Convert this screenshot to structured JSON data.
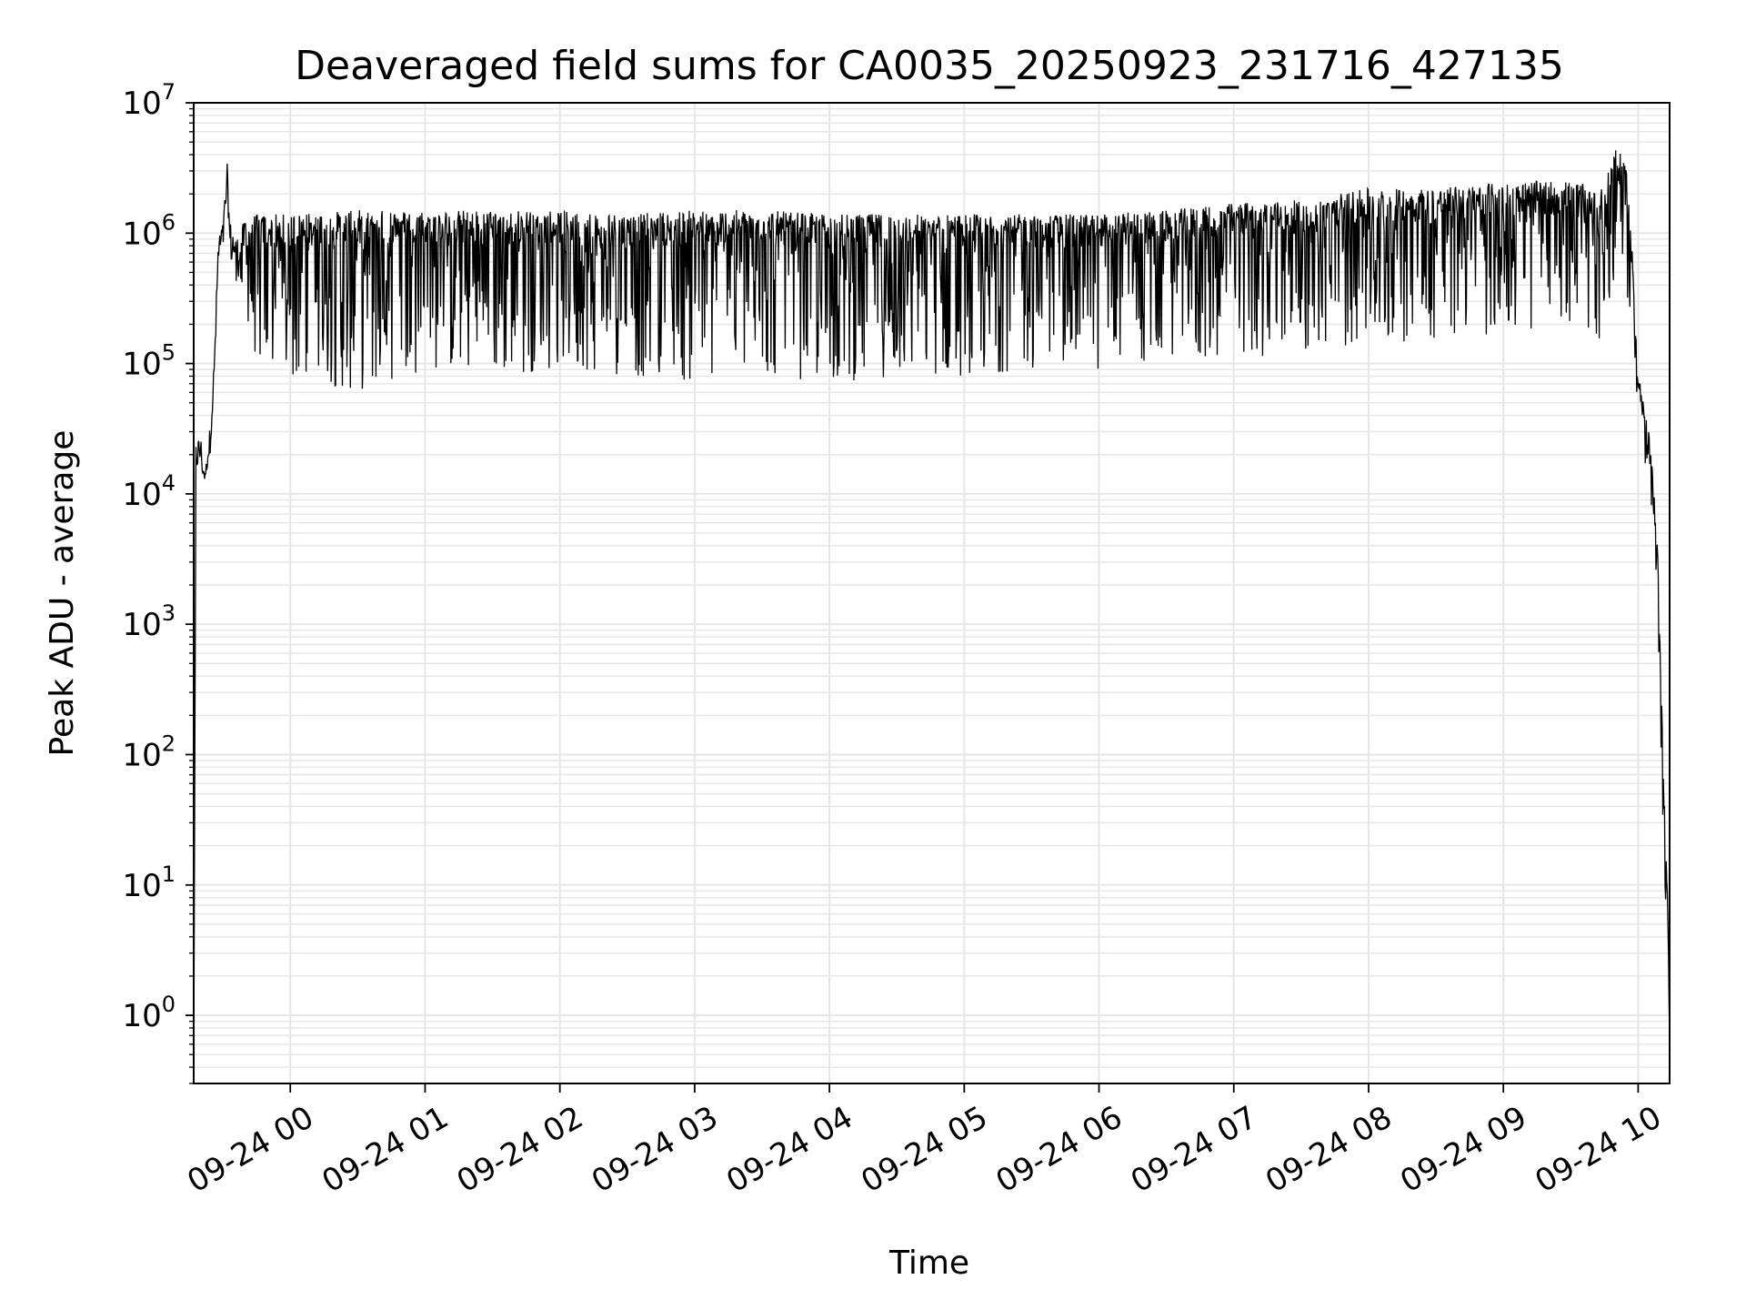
{
  "chart_data": {
    "type": "line",
    "title": "Deaveraged field sums for CA0035_20250923_231716_427135",
    "xlabel": "Time",
    "ylabel": "Peak ADU - average",
    "yscale": "log",
    "ylim": [
      0.3,
      10000000
    ],
    "xlim": [
      "2025-09-23 23:17",
      "2025-09-24 10:14"
    ],
    "grid": true,
    "line_color": "#000000",
    "grid_color": "#e6e6e6",
    "x_ticks": [
      {
        "value": "2025-09-24 00:00",
        "label": "09-24 00"
      },
      {
        "value": "2025-09-24 01:00",
        "label": "09-24 01"
      },
      {
        "value": "2025-09-24 02:00",
        "label": "09-24 02"
      },
      {
        "value": "2025-09-24 03:00",
        "label": "09-24 03"
      },
      {
        "value": "2025-09-24 04:00",
        "label": "09-24 04"
      },
      {
        "value": "2025-09-24 05:00",
        "label": "09-24 05"
      },
      {
        "value": "2025-09-24 06:00",
        "label": "09-24 06"
      },
      {
        "value": "2025-09-24 07:00",
        "label": "09-24 07"
      },
      {
        "value": "2025-09-24 08:00",
        "label": "09-24 08"
      },
      {
        "value": "2025-09-24 09:00",
        "label": "09-24 09"
      },
      {
        "value": "2025-09-24 10:00",
        "label": "09-24 10"
      }
    ],
    "y_ticks": [
      {
        "value": 1,
        "base": "10",
        "exp": "0"
      },
      {
        "value": 10,
        "base": "10",
        "exp": "1"
      },
      {
        "value": 100,
        "base": "10",
        "exp": "2"
      },
      {
        "value": 1000,
        "base": "10",
        "exp": "3"
      },
      {
        "value": 10000,
        "base": "10",
        "exp": "4"
      },
      {
        "value": 100000,
        "base": "10",
        "exp": "5"
      },
      {
        "value": 1000000,
        "base": "10",
        "exp": "6"
      },
      {
        "value": 10000000,
        "base": "10",
        "exp": "7"
      }
    ],
    "series": [
      {
        "x": [
          "2025-09-23 23:17",
          "2025-09-23 23:18",
          "2025-09-23 23:20",
          "2025-09-23 23:22",
          "2025-09-23 23:24",
          "2025-09-23 23:26",
          "2025-09-23 23:28",
          "2025-09-23 23:30",
          "2025-09-23 23:32",
          "2025-09-23 23:33",
          "2025-09-23 23:36",
          "2025-09-23 23:40",
          "2025-09-23 23:45",
          "2025-09-23 23:50",
          "2025-09-24 00:00",
          "2025-09-24 00:30",
          "2025-09-24 01:00",
          "2025-09-24 01:30",
          "2025-09-24 02:00",
          "2025-09-24 02:30",
          "2025-09-24 03:00",
          "2025-09-24 03:30",
          "2025-09-24 04:00",
          "2025-09-24 04:30",
          "2025-09-24 05:00",
          "2025-09-24 05:30",
          "2025-09-24 06:00",
          "2025-09-24 06:30",
          "2025-09-24 07:00",
          "2025-09-24 07:30",
          "2025-09-24 08:00",
          "2025-09-24 08:30",
          "2025-09-24 09:00",
          "2025-09-24 09:30",
          "2025-09-24 09:45",
          "2025-09-24 09:50",
          "2025-09-24 09:55",
          "2025-09-24 09:58",
          "2025-09-24 10:00",
          "2025-09-24 10:03",
          "2025-09-24 10:06",
          "2025-09-24 10:09",
          "2025-09-24 10:11",
          "2025-09-24 10:13",
          "2025-09-24 10:14"
        ],
        "y_high": [
          0.3,
          25000,
          30000,
          15000,
          30000,
          100000,
          1000000,
          1200000,
          3600000,
          1300000,
          900000,
          1300000,
          1400000,
          1400000,
          1400000,
          1500000,
          1500000,
          1500000,
          1500000,
          1400000,
          1500000,
          1500000,
          1400000,
          1400000,
          1400000,
          1400000,
          1400000,
          1500000,
          1700000,
          1800000,
          2200000,
          2200000,
          2500000,
          2500000,
          2200000,
          5000000,
          3000000,
          500000,
          100000,
          50000,
          20000,
          3000,
          100,
          10,
          1
        ],
        "y_low": [
          0.3,
          15000,
          15000,
          12000,
          20000,
          50000,
          500000,
          800000,
          800000,
          700000,
          300000,
          250000,
          100000,
          80000,
          70000,
          60000,
          90000,
          80000,
          90000,
          80000,
          70000,
          80000,
          70000,
          80000,
          80000,
          90000,
          90000,
          100000,
          110000,
          120000,
          140000,
          150000,
          170000,
          180000,
          150000,
          400000,
          300000,
          100000,
          40000,
          15000,
          5000,
          800,
          30,
          3,
          0.3
        ]
      }
    ]
  }
}
